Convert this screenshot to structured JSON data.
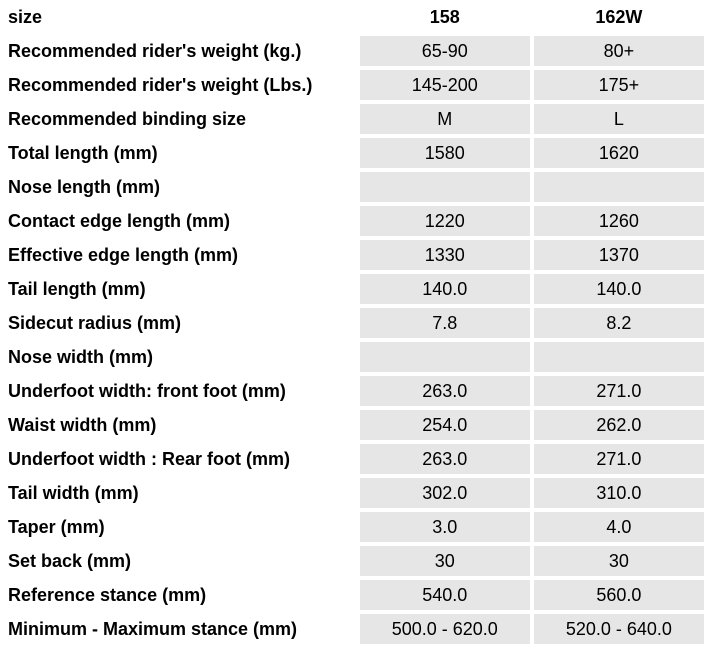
{
  "header": {
    "label": "size",
    "columns": [
      "158",
      "162W"
    ]
  },
  "rows": [
    {
      "label": "Recommended rider's weight (kg.)",
      "values": [
        "65-90",
        "80+"
      ]
    },
    {
      "label": "Recommended rider's weight (Lbs.)",
      "values": [
        "145-200",
        "175+"
      ]
    },
    {
      "label": "Recommended binding size",
      "values": [
        "M",
        "L"
      ]
    },
    {
      "label": "Total length (mm)",
      "values": [
        "1580",
        "1620"
      ]
    },
    {
      "label": "Nose length (mm)",
      "values": [
        "",
        ""
      ]
    },
    {
      "label": "Contact edge length (mm)",
      "values": [
        "1220",
        "1260"
      ]
    },
    {
      "label": "Effective edge length (mm)",
      "values": [
        "1330",
        "1370"
      ]
    },
    {
      "label": "Tail length (mm)",
      "values": [
        "140.0",
        "140.0"
      ]
    },
    {
      "label": "Sidecut radius (mm)",
      "values": [
        "7.8",
        "8.2"
      ]
    },
    {
      "label": "Nose width (mm)",
      "values": [
        "",
        ""
      ]
    },
    {
      "label": "Underfoot width: front foot (mm)",
      "values": [
        "263.0",
        "271.0"
      ]
    },
    {
      "label": "Waist width (mm)",
      "values": [
        "254.0",
        "262.0"
      ]
    },
    {
      "label": "Underfoot width : Rear foot (mm)",
      "values": [
        "263.0",
        "271.0"
      ]
    },
    {
      "label": "Tail width (mm)",
      "values": [
        "302.0",
        "310.0"
      ]
    },
    {
      "label": "Taper (mm)",
      "values": [
        "3.0",
        "4.0"
      ]
    },
    {
      "label": "Set back (mm)",
      "values": [
        "30",
        "30"
      ]
    },
    {
      "label": "Reference stance (mm)",
      "values": [
        "540.0",
        "560.0"
      ]
    },
    {
      "label": "Minimum - Maximum stance (mm)",
      "values": [
        "500.0 - 620.0",
        "520.0 - 640.0"
      ]
    }
  ]
}
